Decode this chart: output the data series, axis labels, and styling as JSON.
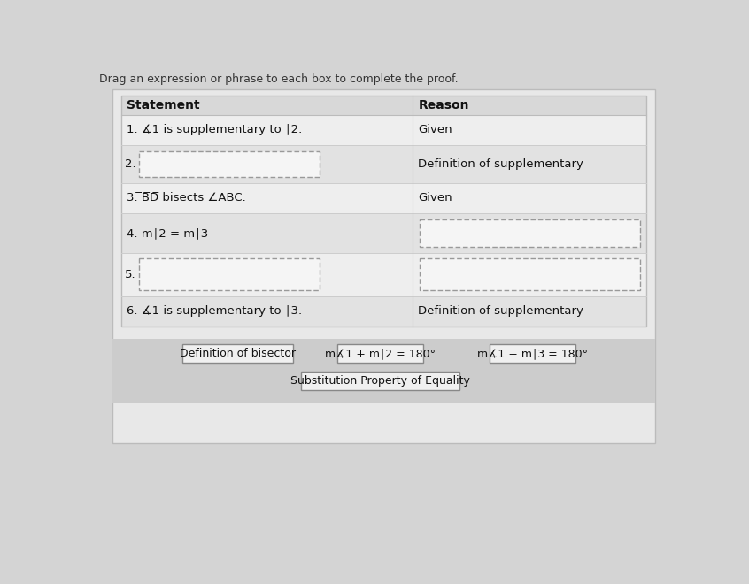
{
  "title": "Drag an expression or phrase to each box to complete the proof.",
  "bg_outer": "#d4d4d4",
  "bg_inner": "#e8e8e8",
  "table_border": "#bbbbbb",
  "header_bg": "#d8d8d8",
  "row_bg_even": "#eeeeee",
  "row_bg_odd": "#e2e2e2",
  "col_line": "#bbbbbb",
  "row_line": "#cccccc",
  "box_bg": "#f5f5f5",
  "box_border": "#999999",
  "header_left": "Statement",
  "header_right": "Reason",
  "rows": [
    {
      "statement": "1. ∡1 is supplementary to ∣2.",
      "reason": "Given",
      "stmt_box": false,
      "rsn_box": false
    },
    {
      "statement": "2.",
      "reason": "Definition of supplementary",
      "stmt_box": true,
      "rsn_box": false
    },
    {
      "statement": "3. ̅B̅D̅ bisects ∠ABC.",
      "reason": "Given",
      "stmt_box": false,
      "rsn_box": false
    },
    {
      "statement": "4. m∣2 = m∣3",
      "reason": "",
      "stmt_box": false,
      "rsn_box": true
    },
    {
      "statement": "5.",
      "reason": "",
      "stmt_box": true,
      "rsn_box": true
    },
    {
      "statement": "6. ∡1 is supplementary to ∣3.",
      "reason": "Definition of supplementary",
      "stmt_box": false,
      "rsn_box": false
    }
  ],
  "drag_items": [
    "Definition of bisector",
    "m∡1 + m∣2 = 180°",
    "m∡1 + m∣3 = 180°",
    "Substitution Property of Equality"
  ],
  "drag_area_bg": "#cccccc",
  "drag_box_bg": "#f0f0f0",
  "drag_box_border": "#888888",
  "title_fontsize": 9,
  "header_fontsize": 10,
  "cell_fontsize": 9.5,
  "drag_fontsize": 9
}
